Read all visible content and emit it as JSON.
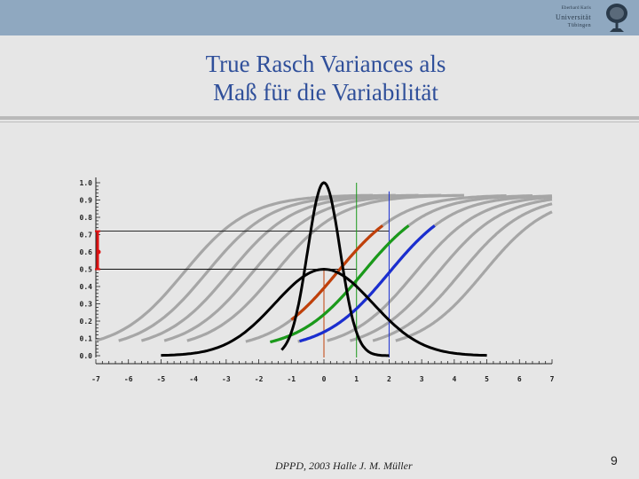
{
  "slide": {
    "title_line1": "True Rasch Variances als",
    "title_line2": "Maß für die Variabilität",
    "footer": "DPPD, 2003 Halle J. M. Müller",
    "page_number": "9"
  },
  "logo": {
    "line1": "Eberhard Karls",
    "line2": "Universität",
    "line3": "Tübingen",
    "icon": "tree-seal-icon"
  },
  "colors": {
    "gray_curve": "#a6a6a6",
    "orange": "#c0400a",
    "green": "#1a9a1a",
    "blue": "#1a2ed0",
    "black": "#000000",
    "red_marker": "#dd1111"
  },
  "chart_data": {
    "type": "line",
    "xlim": [
      -7,
      7
    ],
    "ylim": [
      0,
      1
    ],
    "x_ticks": [
      -7,
      -6,
      -5,
      -4,
      -3,
      -2,
      -1,
      0,
      1,
      2,
      3,
      4,
      5,
      6,
      7
    ],
    "x_tick_labels": [
      "-7",
      "-6",
      "-5",
      "-4",
      "-3",
      "-2",
      "-1",
      "0",
      "1",
      "2",
      "3",
      "4",
      "5",
      "6",
      "7"
    ],
    "x_tick_colors": [
      "#222",
      "#222",
      "#222",
      "#222",
      "#222",
      "#222",
      "#222",
      "#c0400a",
      "#1a9a1a",
      "#1a2ed0",
      "#222",
      "#222",
      "#222",
      "#222",
      "#222"
    ],
    "y_ticks": [
      0,
      0.1,
      0.2,
      0.3,
      0.4,
      0.5,
      0.6,
      0.7,
      0.8,
      0.9,
      1.0
    ],
    "y_tick_labels": [
      "0.0",
      "0.1",
      "0.2",
      "0.3",
      "0.4",
      "0.5",
      "0.6",
      "0.7",
      "0.8",
      "0.9",
      "1.0"
    ],
    "logistic_curves": {
      "upper_asymptote": 0.93,
      "lower_asymptote": 0.03,
      "slope": 1.0,
      "gray_locations": [
        -4.3,
        -3.6,
        -2.9,
        -2.2,
        -1.5,
        2.8,
        3.5,
        4.2,
        4.9
      ],
      "gray_x_ranges": [
        [
          -7,
          1.5
        ],
        [
          -6.3,
          2.2
        ],
        [
          -5.6,
          2.9
        ],
        [
          -4.9,
          3.6
        ],
        [
          -4.2,
          4.3
        ],
        [
          0.1,
          7
        ],
        [
          0.8,
          7
        ],
        [
          1.5,
          7
        ],
        [
          2.2,
          7
        ]
      ],
      "colored": [
        {
          "color": "orange",
          "location": 0.4,
          "gray_range": [
            -2.4,
            5.6
          ],
          "colored_range": [
            -1.0,
            1.8
          ]
        },
        {
          "color": "green",
          "location": 1.2,
          "gray_range": [
            -1.6,
            6.4
          ],
          "colored_range": [
            -1.65,
            2.6
          ]
        },
        {
          "color": "blue",
          "location": 2.0,
          "gray_range": [
            -0.8,
            7.0
          ],
          "colored_range": [
            -0.75,
            3.4
          ]
        }
      ]
    },
    "normal_curves": [
      {
        "mean": 0,
        "sd": 0.5,
        "peak_y": 1.0,
        "range": [
          -1.3,
          2.0
        ]
      },
      {
        "mean": 0,
        "sd": 1.5,
        "peak_y": 0.5,
        "range": [
          -5.0,
          5.0
        ]
      }
    ],
    "reference_lines": {
      "vertical": [
        {
          "x": 0,
          "color": "orange",
          "y_top": 0.5
        },
        {
          "x": 1,
          "color": "green",
          "y_top": 1.0
        },
        {
          "x": 2,
          "color": "blue",
          "y_top": 0.95
        }
      ],
      "horizontal": [
        {
          "y": 0.72,
          "x_to": 2
        },
        {
          "y": 0.5,
          "x_to": 1
        }
      ]
    },
    "red_interval": {
      "y_low": 0.5,
      "y_high": 0.72,
      "marker_y": 0.6
    }
  }
}
